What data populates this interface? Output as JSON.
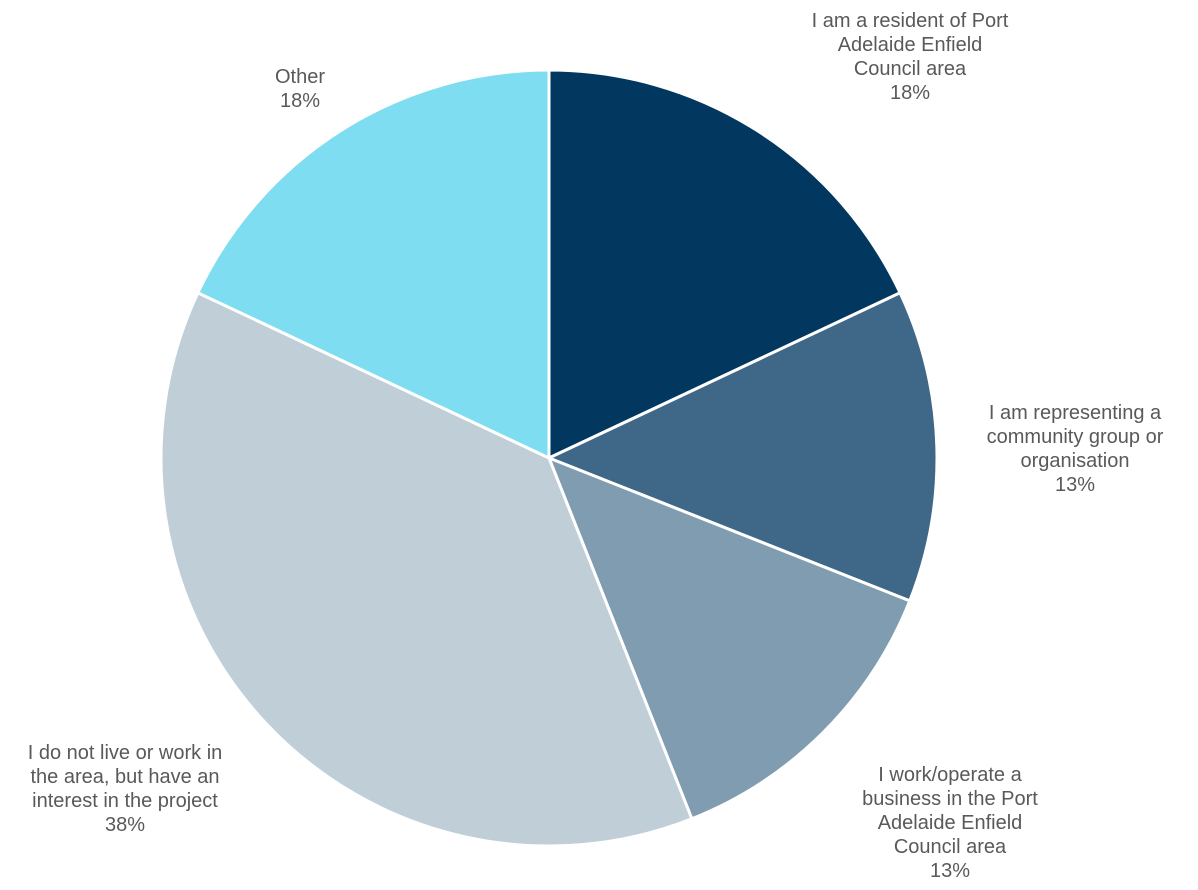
{
  "chart_data": {
    "type": "pie",
    "title": "",
    "slices": [
      {
        "label_lines": [
          "I am a resident of Port",
          "Adelaide Enfield",
          "Council area"
        ],
        "percent_label": "18%",
        "value": 18,
        "color": "#02385F"
      },
      {
        "label_lines": [
          "I am representing a",
          "community group or",
          "organisation"
        ],
        "percent_label": "13%",
        "value": 13,
        "color": "#3F6787"
      },
      {
        "label_lines": [
          "I work/operate a",
          "business in the Port",
          "Adelaide Enfield",
          "Council area"
        ],
        "percent_label": "13%",
        "value": 13,
        "color": "#809CB0"
      },
      {
        "label_lines": [
          "I do not live or work in",
          "the area, but have an",
          "interest in the project"
        ],
        "percent_label": "38%",
        "value": 38,
        "color": "#C0CED7"
      },
      {
        "label_lines": [
          "Other"
        ],
        "percent_label": "18%",
        "value": 18,
        "color": "#7EDDF0"
      }
    ],
    "start_angle_deg": 0,
    "direction": "clockwise",
    "legend": "none"
  }
}
